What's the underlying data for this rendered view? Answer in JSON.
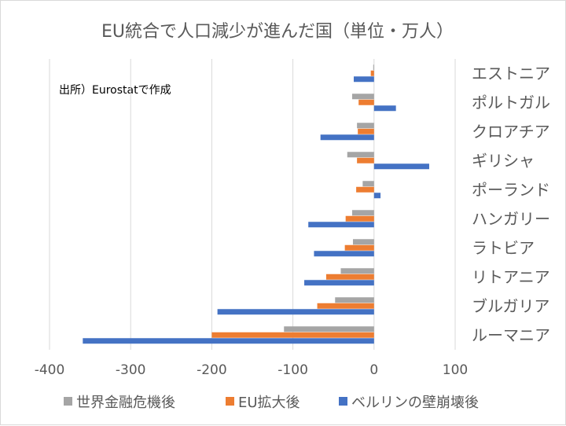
{
  "chart_data": {
    "type": "bar",
    "orientation": "horizontal",
    "title": "EU統合で人口減少が進んだ国（単位・万人）",
    "annotation": "出所）Eurostatで作成",
    "categories": [
      "エストニア",
      "ポルトガル",
      "クロアチア",
      "ギリシャ",
      "ポーランド",
      "ハンガリー",
      "ラトビア",
      "リトアニア",
      "ブルガリア",
      "ルーマニア"
    ],
    "series": [
      {
        "name": "世界金融危機後",
        "color": "#a5a5a5",
        "values": [
          -1,
          -27,
          -21,
          -33,
          -14,
          -27,
          -26,
          -41,
          -48,
          -111
        ]
      },
      {
        "name": "EU拡大後",
        "color": "#ed7d31",
        "values": [
          -4,
          -19,
          -20,
          -21,
          -22,
          -35,
          -36,
          -59,
          -70,
          -200
        ]
      },
      {
        "name": "ベルリンの壁崩壊後",
        "color": "#4472c4",
        "values": [
          -25,
          27,
          -66,
          68,
          8,
          -81,
          -74,
          -86,
          -193,
          -359
        ]
      }
    ],
    "xlim": [
      -400,
      100
    ],
    "xticks": [
      -400,
      -300,
      -200,
      -100,
      0,
      100
    ],
    "grid": true,
    "legend_position": "bottom"
  }
}
